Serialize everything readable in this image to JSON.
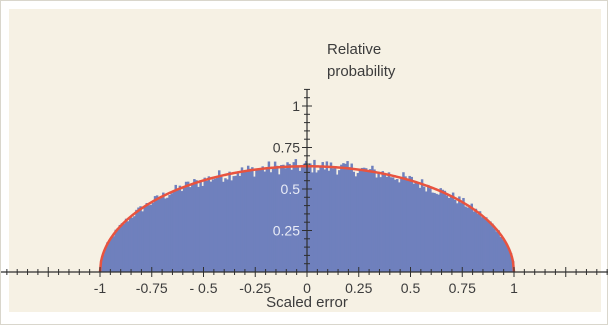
{
  "chart_data": {
    "type": "bar",
    "xlabel": "Scaled error",
    "ylabel": "Relative probability",
    "ylabel_lines": [
      "Relative",
      "probability"
    ],
    "xlim": [
      -1.5,
      1.5
    ],
    "ylim": [
      0,
      1.1
    ],
    "x_ticks": [
      -1,
      -0.75,
      -0.5,
      -0.25,
      0,
      0.25,
      0.5,
      0.75,
      1
    ],
    "x_tick_labels": [
      "-1",
      "-0.75",
      "- 0.5",
      "-0.25",
      "0",
      "0.25",
      "0.5",
      "0.75",
      "1"
    ],
    "y_ticks": [
      0.25,
      0.5,
      0.75,
      1
    ],
    "y_tick_labels": [
      "0.25",
      "0.5",
      "0.75",
      "1"
    ],
    "grid": false,
    "histogram": {
      "range": [
        -1,
        1
      ],
      "bins": 200,
      "series_color": "#6f80bd",
      "shape": "semicircle",
      "peak": 0.637
    },
    "curve": {
      "equation": "y = (2/pi) * sqrt(1 - x^2)",
      "color": "#e8533f",
      "peak": 0.637
    },
    "colors": {
      "plot_background": "#f6f1e4",
      "axis": "#2f2f2f"
    }
  }
}
